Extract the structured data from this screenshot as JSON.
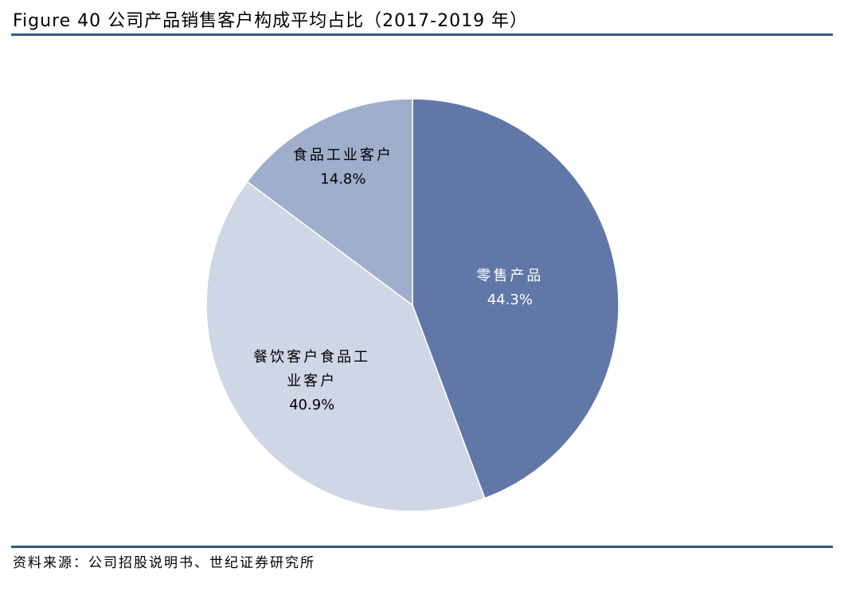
{
  "chart_data": {
    "type": "pie",
    "title": "Figure 40 公司产品销售客户构成平均占比（2017-2019 年）",
    "source": "资料来源：公司招股说明书、世纪证券研究所",
    "start_angle": "top",
    "direction": "clockwise",
    "slices": [
      {
        "label": "零售产品",
        "value": 44.3,
        "value_label": "44.3%",
        "color": "#6077A8",
        "label_color": "#FFFFFF"
      },
      {
        "label": "餐饮客户食品工业客户",
        "label_lines": [
          "餐饮客户食品工",
          "业客户"
        ],
        "value": 40.9,
        "value_label": "40.9%",
        "color": "#CFD6E6",
        "label_color": "#000000"
      },
      {
        "label": "食品工业客户",
        "value": 14.8,
        "value_label": "14.8%",
        "color": "#9FAECB",
        "label_color": "#000000"
      }
    ]
  },
  "colors": {
    "rule": "#2F5A8C"
  }
}
